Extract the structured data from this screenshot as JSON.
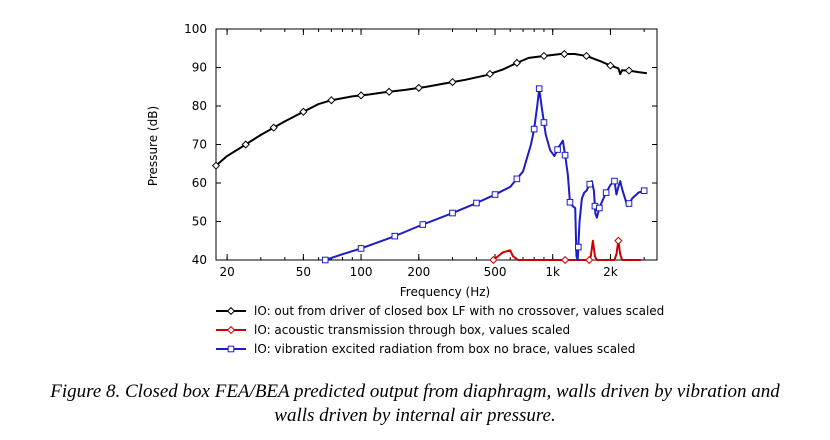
{
  "chart_data": {
    "type": "line",
    "xlabel": "Frequency  (Hz)",
    "ylabel": "Pressure  (dB)",
    "xscale": "log",
    "xlim": [
      17.5,
      3500
    ],
    "ylim": [
      40,
      100
    ],
    "x_ticks": [
      {
        "value": 20,
        "label": "20"
      },
      {
        "value": 50,
        "label": "50"
      },
      {
        "value": 100,
        "label": "100"
      },
      {
        "value": 200,
        "label": "200"
      },
      {
        "value": 500,
        "label": "500"
      },
      {
        "value": 1000,
        "label": "1k"
      },
      {
        "value": 2000,
        "label": "2k"
      }
    ],
    "y_ticks": [
      40,
      50,
      60,
      70,
      80,
      90,
      100
    ],
    "grid": false,
    "series": [
      {
        "name": "lO: out from driver of closed box LF with no crossover, values scaled",
        "color": "#000000",
        "marker": "diamond",
        "points": [
          [
            17.5,
            64.5
          ],
          [
            20,
            67
          ],
          [
            25,
            70
          ],
          [
            30,
            72.5
          ],
          [
            40,
            76
          ],
          [
            50,
            78.5
          ],
          [
            60,
            80.5
          ],
          [
            70,
            81.5
          ],
          [
            90,
            82.5
          ],
          [
            110,
            83
          ],
          [
            130,
            83.5
          ],
          [
            170,
            84.2
          ],
          [
            220,
            85
          ],
          [
            270,
            85.8
          ],
          [
            350,
            86.8
          ],
          [
            450,
            88
          ],
          [
            550,
            89.5
          ],
          [
            650,
            91.2
          ],
          [
            750,
            92.5
          ],
          [
            900,
            93
          ],
          [
            1100,
            93.5
          ],
          [
            1300,
            93.5
          ],
          [
            1500,
            93
          ],
          [
            1800,
            91.5
          ],
          [
            2000,
            90.5
          ],
          [
            2200,
            89.8
          ],
          [
            2250,
            88.3
          ],
          [
            2300,
            89.3
          ],
          [
            2500,
            89.2
          ],
          [
            2800,
            88.8
          ],
          [
            3100,
            88.5
          ]
        ],
        "markers_x": [
          17.5,
          25,
          35,
          50,
          70,
          100,
          140,
          200,
          300,
          470,
          650,
          900,
          1150,
          1500,
          2000,
          2500
        ]
      },
      {
        "name": "lO: acoustic transmission through box, values scaled",
        "color": "#cc0000",
        "marker": "diamond",
        "points": [
          [
            490,
            40
          ],
          [
            550,
            42
          ],
          [
            600,
            42.5
          ],
          [
            620,
            41
          ],
          [
            660,
            40
          ],
          [
            1150,
            40
          ],
          [
            1550,
            40
          ],
          [
            1580,
            41
          ],
          [
            1620,
            45
          ],
          [
            1660,
            41
          ],
          [
            1700,
            40
          ],
          [
            2100,
            40
          ],
          [
            2150,
            41.5
          ],
          [
            2200,
            45
          ],
          [
            2250,
            41.5
          ],
          [
            2300,
            40
          ],
          [
            2900,
            40
          ]
        ],
        "markers_x": [
          490,
          1160,
          1550,
          2200
        ]
      },
      {
        "name": "lO: vibration excited radiation from box no brace, values scaled",
        "color": "#1c1cc8",
        "marker": "square",
        "points": [
          [
            65,
            40
          ],
          [
            80,
            41.5
          ],
          [
            100,
            43
          ],
          [
            150,
            46.2
          ],
          [
            200,
            48.8
          ],
          [
            300,
            52.2
          ],
          [
            400,
            54.8
          ],
          [
            500,
            57
          ],
          [
            600,
            59
          ],
          [
            700,
            63
          ],
          [
            770,
            70
          ],
          [
            800,
            74
          ],
          [
            830,
            80
          ],
          [
            850,
            84.5
          ],
          [
            880,
            79
          ],
          [
            920,
            72.5
          ],
          [
            970,
            68.5
          ],
          [
            1020,
            67
          ],
          [
            1080,
            69.5
          ],
          [
            1130,
            71
          ],
          [
            1170,
            66
          ],
          [
            1200,
            62
          ],
          [
            1230,
            55
          ],
          [
            1270,
            54
          ],
          [
            1310,
            53.5
          ],
          [
            1330,
            41
          ],
          [
            1350,
            40
          ],
          [
            1380,
            50
          ],
          [
            1420,
            56
          ],
          [
            1460,
            57.5
          ],
          [
            1500,
            58
          ],
          [
            1550,
            59.5
          ],
          [
            1600,
            60.5
          ],
          [
            1640,
            58
          ],
          [
            1670,
            52
          ],
          [
            1700,
            51
          ],
          [
            1750,
            53.5
          ],
          [
            1820,
            55.5
          ],
          [
            1900,
            57.5
          ],
          [
            2000,
            59.5
          ],
          [
            2100,
            60.5
          ],
          [
            2150,
            57
          ],
          [
            2200,
            59
          ],
          [
            2250,
            60.5
          ],
          [
            2300,
            58.5
          ],
          [
            2400,
            55.5
          ],
          [
            2450,
            54
          ],
          [
            2600,
            56
          ],
          [
            2800,
            57.5
          ],
          [
            3000,
            58
          ]
        ],
        "markers_x": [
          65,
          100,
          150,
          210,
          300,
          400,
          500,
          650,
          800,
          850,
          900,
          1060,
          1160,
          1230,
          1360,
          1560,
          1660,
          1750,
          1900,
          2100,
          2500,
          3000
        ]
      }
    ]
  },
  "caption": {
    "line1": "Figure 8. Closed box FEA/BEA predicted output from diaphragm, walls driven by vibration and",
    "line2": "walls driven by internal air pressure."
  }
}
